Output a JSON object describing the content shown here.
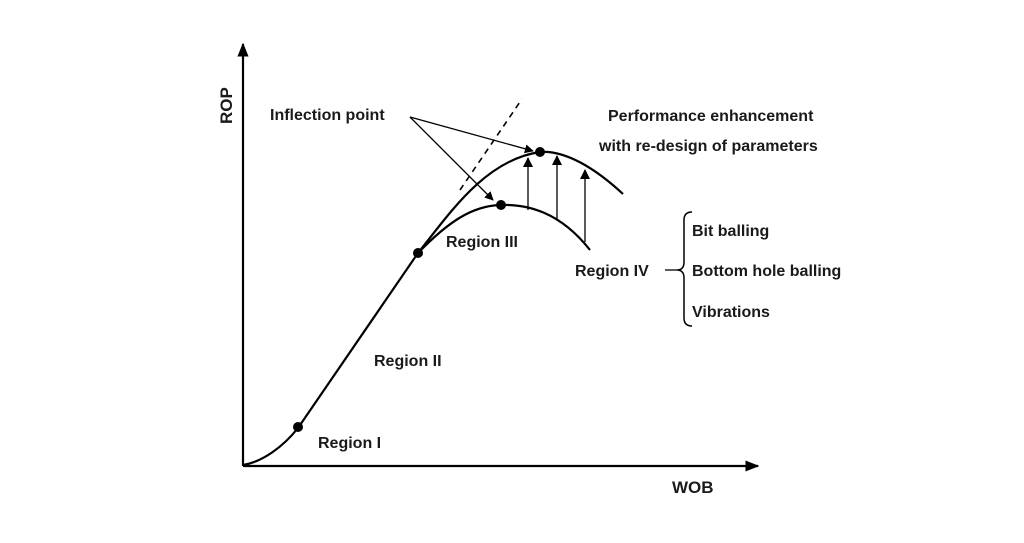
{
  "axes": {
    "y_label": "ROP",
    "x_label": "WOB"
  },
  "annotations": {
    "inflection_point": "Inflection point",
    "performance_line1": "Performance enhancement",
    "performance_line2": "with re-design of parameters"
  },
  "regions": {
    "region_1": "Region I",
    "region_2": "Region II",
    "region_3": "Region III",
    "region_4": "Region IV"
  },
  "region_iv_causes": [
    "Bit balling",
    "Bottom hole balling",
    "Vibrations"
  ],
  "colors": {
    "ink": "#000000",
    "background": "#ffffff"
  }
}
